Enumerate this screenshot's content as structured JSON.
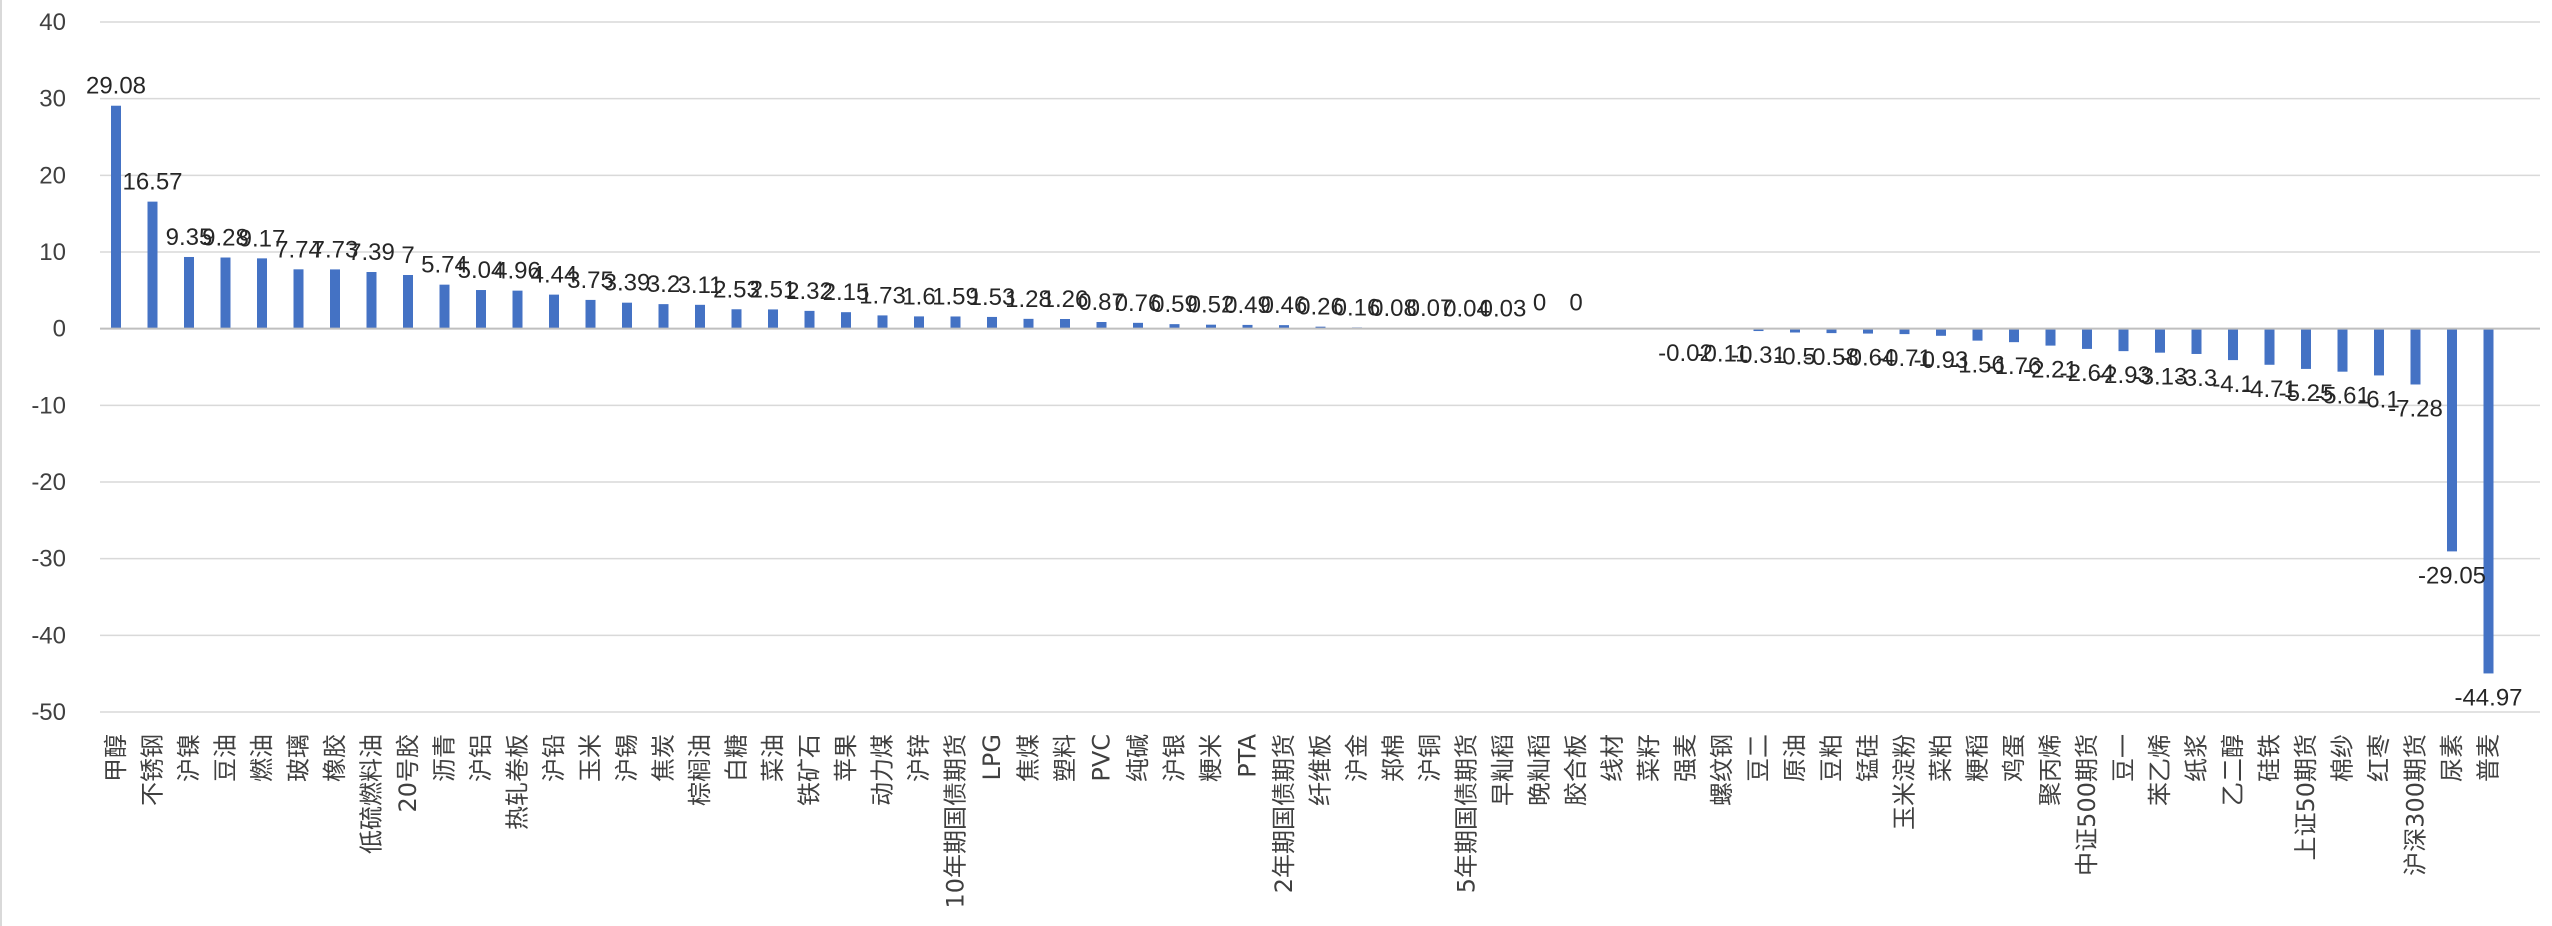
{
  "chart_data": {
    "type": "bar",
    "title": "",
    "xlabel": "",
    "ylabel": "",
    "ylim": [
      -50,
      40
    ],
    "yticks": [
      40,
      30,
      20,
      10,
      0,
      -10,
      -20,
      -30,
      -40,
      -50
    ],
    "grid": true,
    "legend": "none",
    "bar_color": "#4472C4",
    "categories": [
      "甲醇",
      "不锈钢",
      "沪镍",
      "豆油",
      "燃油",
      "玻璃",
      "橡胶",
      "低硫燃料油",
      "20号胶",
      "沥青",
      "沪铝",
      "热轧卷板",
      "沪铅",
      "玉米",
      "沪锡",
      "焦炭",
      "棕榈油",
      "白糖",
      "菜油",
      "铁矿石",
      "苹果",
      "动力煤",
      "沪锌",
      "10年期国债期货",
      "LPG",
      "焦煤",
      "塑料",
      "PVC",
      "纯碱",
      "沪银",
      "粳米",
      "PTA",
      "2年期国债期货",
      "纤维板",
      "沪金",
      "郑棉",
      "沪铜",
      "5年期国债期货",
      "早籼稻",
      "晚籼稻",
      "胶合板",
      "线材",
      "菜籽",
      "强麦",
      "螺纹钢",
      "豆二",
      "原油",
      "豆粕",
      "锰硅",
      "玉米淀粉",
      "菜粕",
      "粳稻",
      "鸡蛋",
      "聚丙烯",
      "中证500期货",
      "豆一",
      "苯乙烯",
      "纸浆",
      "乙二醇",
      "硅铁",
      "上证50期货",
      "棉纱",
      "红枣",
      "沪深300期货",
      "尿素",
      "普麦"
    ],
    "values": [
      29.08,
      16.57,
      9.35,
      9.28,
      9.17,
      7.74,
      7.73,
      7.39,
      7,
      5.74,
      5.04,
      4.96,
      4.44,
      3.75,
      3.39,
      3.2,
      3.11,
      2.53,
      2.51,
      2.32,
      2.15,
      1.73,
      1.6,
      1.59,
      1.53,
      1.28,
      1.26,
      0.87,
      0.76,
      0.59,
      0.52,
      0.49,
      0.46,
      0.26,
      0.16,
      0.08,
      0.07,
      0.04,
      0.03,
      0,
      0,
      0,
      0,
      -0.02,
      -0.11,
      -0.31,
      -0.5,
      -0.58,
      -0.64,
      -0.71,
      -0.93,
      -1.56,
      -1.76,
      -2.21,
      -2.64,
      -2.93,
      -3.13,
      -3.3,
      -4.1,
      -4.71,
      -5.25,
      -5.61,
      -6.1,
      -7.28,
      -29.05,
      -44.97
    ],
    "labels": [
      "29.08",
      "16.57",
      "9.35",
      "9.28",
      "9.17",
      "7.74",
      "7.73",
      "7.39",
      "7",
      "5.74",
      "5.04",
      "4.96",
      "4.44",
      "3.75",
      "3.39",
      "3.2",
      "3.11",
      "2.53",
      "2.51",
      "2.32",
      "2.15",
      "1.73",
      "1.6",
      "1.59",
      "1.53",
      "1.28",
      "1.26",
      "0.87",
      "0.76",
      "0.59",
      "0.52",
      "0.49",
      "0.46",
      "0.26",
      "0.16",
      "0.08",
      "0.07",
      "0.04",
      "0.03",
      "0",
      "0",
      "",
      "",
      "-0.02",
      "-0.11",
      "-0.31",
      "-0.5",
      "-0.58",
      "-0.64",
      "-0.71",
      "-0.93",
      "-1.56",
      "-1.76",
      "-2.21",
      "-2.64",
      "-2.93",
      "-3.13",
      "-3.3",
      "-4.1",
      "-4.71",
      "-5.25",
      "-5.61",
      "-6.1",
      "-7.28",
      "-29.05",
      "-44.97"
    ]
  }
}
